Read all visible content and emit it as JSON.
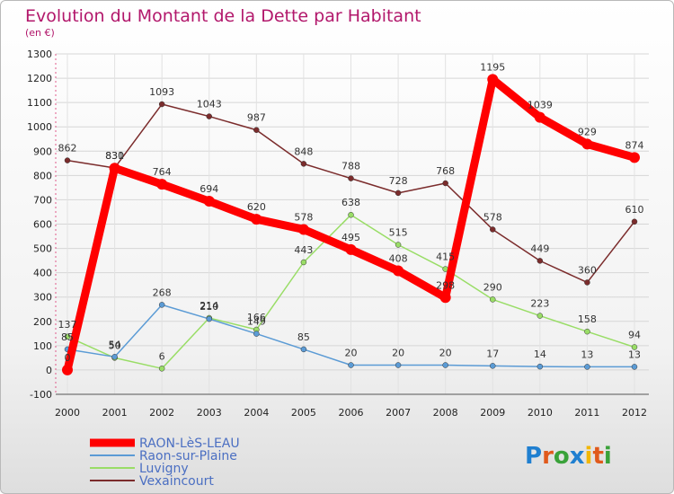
{
  "chart_data": {
    "type": "line",
    "title": "Evolution du Montant de la Dette par Habitant",
    "subtitle": "(en €)",
    "x": [
      "2000",
      "2001",
      "2002",
      "2003",
      "2004",
      "2005",
      "2006",
      "2007",
      "2008",
      "2009",
      "2010",
      "2011",
      "2012"
    ],
    "ylim": [
      -100,
      1300
    ],
    "yticks": [
      -100,
      0,
      100,
      200,
      300,
      400,
      500,
      600,
      700,
      800,
      900,
      1000,
      1100,
      1200,
      1300
    ],
    "grid": true,
    "legend_position": "bottom-left",
    "series": [
      {
        "name": "RAON-LèS-LEAU",
        "color": "#ff0000",
        "values": [
          0,
          830,
          764,
          694,
          620,
          578,
          495,
          408,
          298,
          1195,
          1039,
          929,
          874
        ]
      },
      {
        "name": "Raon-sur-Plaine",
        "color": "#5b9bd5",
        "values": [
          85,
          54,
          268,
          210,
          149,
          85,
          20,
          20,
          20,
          17,
          14,
          13,
          13
        ]
      },
      {
        "name": "Luvigny",
        "color": "#99dd66",
        "values": [
          137,
          50,
          6,
          214,
          166,
          443,
          638,
          515,
          415,
          290,
          223,
          158,
          94
        ]
      },
      {
        "name": "Vexaincourt",
        "color": "#7b2c2c",
        "values": [
          862,
          831,
          1093,
          1043,
          987,
          848,
          788,
          728,
          768,
          578,
          449,
          360,
          610
        ]
      }
    ]
  },
  "logo": {
    "text": "Proxiti",
    "letters": [
      "P",
      "r",
      "o",
      "x",
      "i",
      "t",
      "i"
    ],
    "colors": [
      "#1f7fd0",
      "#e05a1c",
      "#3aa23a",
      "#1f7fd0",
      "#f2b705",
      "#e05a1c",
      "#3aa23a"
    ]
  }
}
